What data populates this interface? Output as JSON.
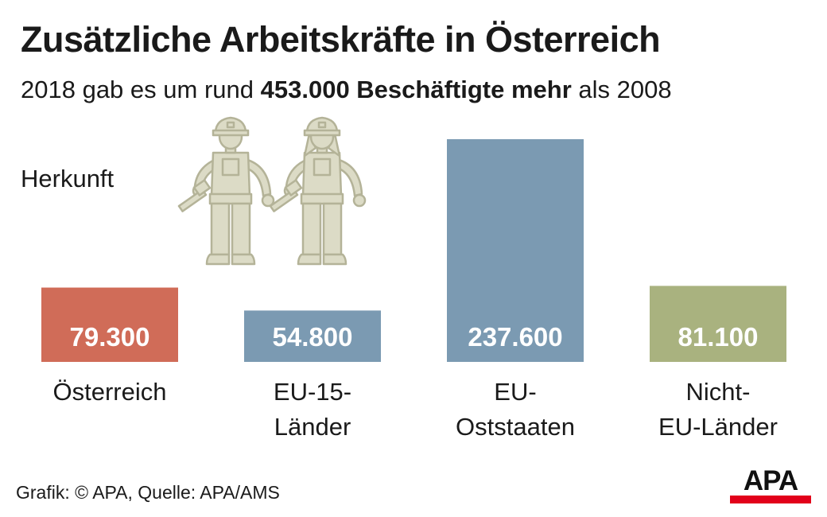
{
  "header": {
    "title": "Zusätzliche Arbeitskräfte in Österreich",
    "subtitle_pre": "2018 gab es um rund",
    "subtitle_bold": "453.000 Beschäftigte mehr",
    "subtitle_post": "als 2008",
    "section_label": "Herkunft"
  },
  "chart_data": {
    "type": "bar",
    "categories": [
      [
        "Österreich"
      ],
      [
        "EU-15-",
        "Länder"
      ],
      [
        "EU-",
        "Oststaaten"
      ],
      [
        "Nicht-",
        "EU-Länder"
      ]
    ],
    "values": [
      79300,
      54800,
      237600,
      81100
    ],
    "value_labels": [
      "79.300",
      "54.800",
      "237.600",
      "81.100"
    ],
    "colors": [
      "#d06c58",
      "#7b9ab2",
      "#7b9ab2",
      "#a9b27f"
    ],
    "ylim": [
      0,
      237600
    ],
    "grid": false,
    "legend": "none"
  },
  "illustration": {
    "icons": [
      "worker-male-icon",
      "worker-female-icon"
    ],
    "color": "#dcdbc6",
    "stroke": "#b4b398"
  },
  "footer": {
    "credit": "Grafik: © APA, Quelle: APA/AMS",
    "logo": "APA",
    "logo_color": "#e2001a"
  }
}
